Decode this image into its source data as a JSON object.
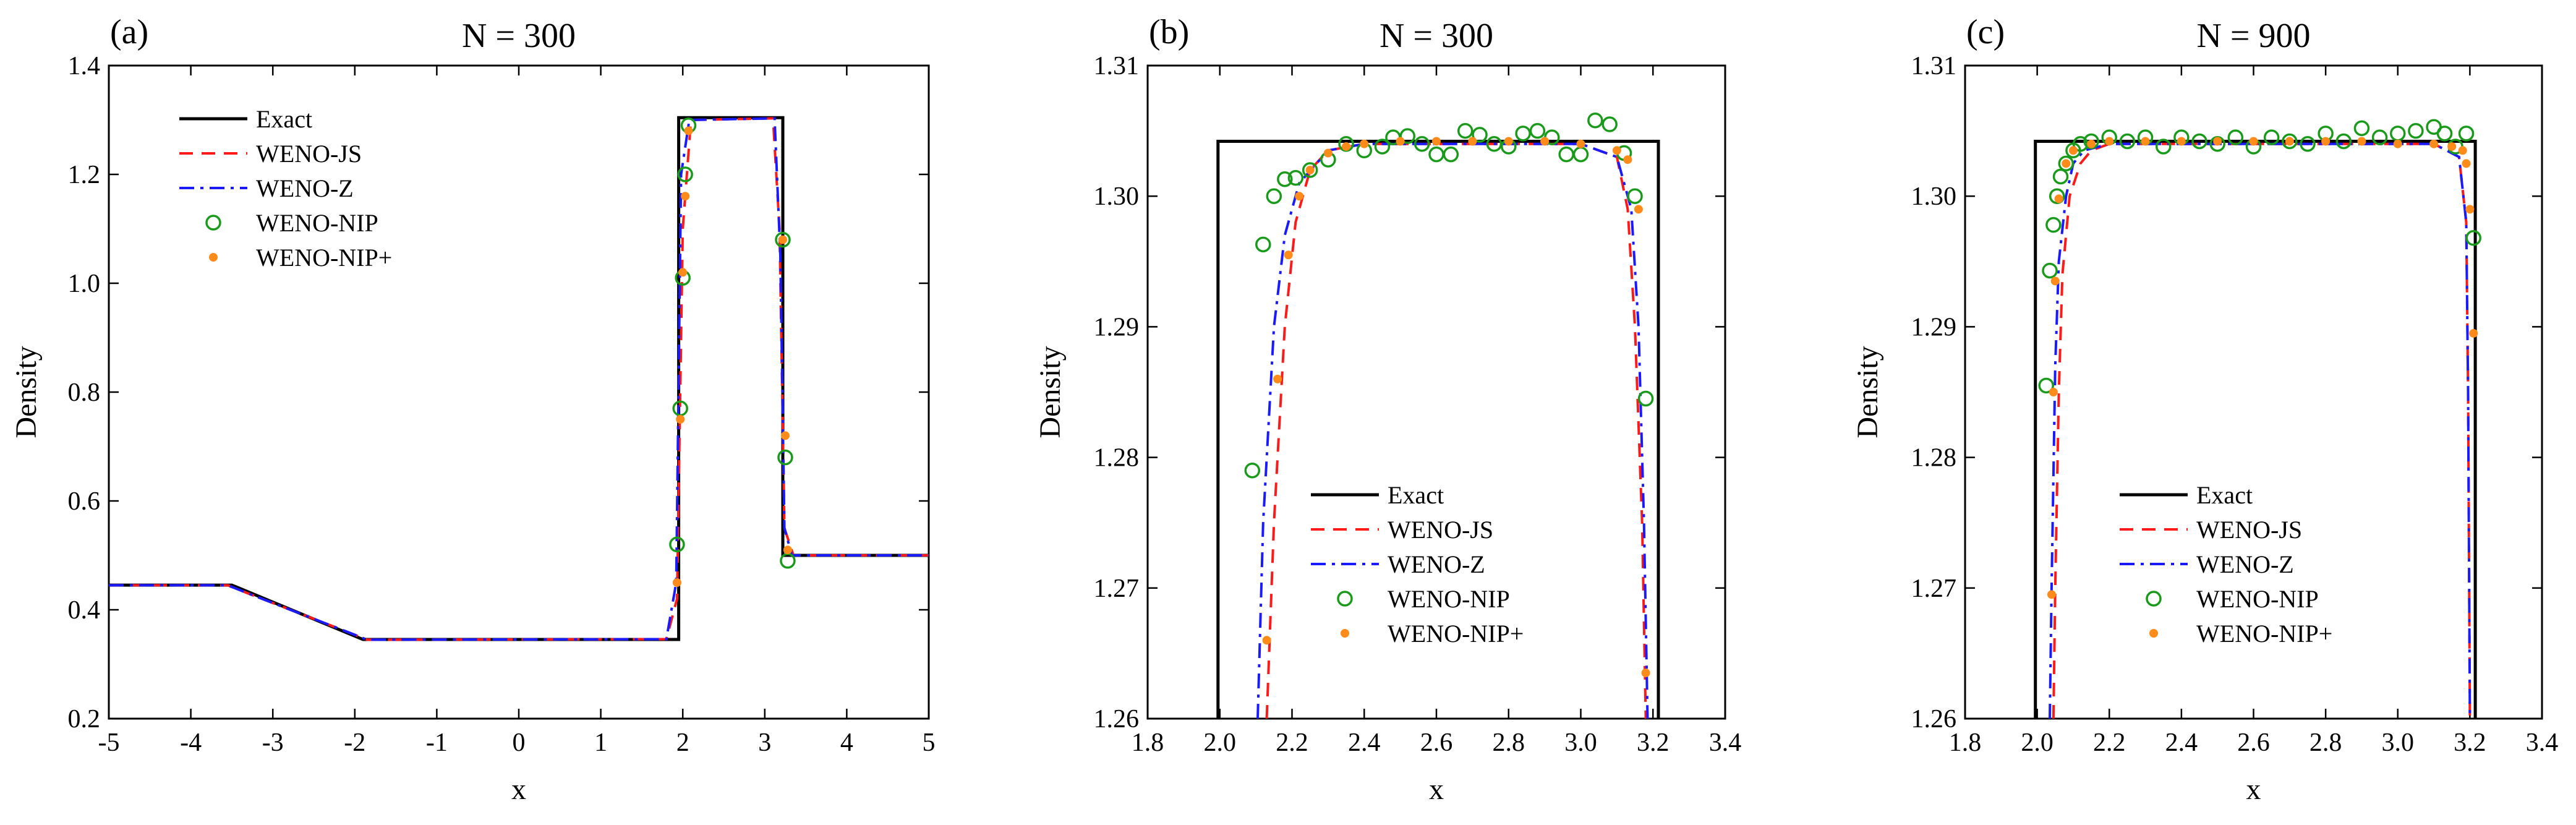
{
  "figure": {
    "description_free": true,
    "series_styles": {
      "Exact": {
        "color": "#000000",
        "style": "solid"
      },
      "WENO-JS": {
        "color": "#ff1a1a",
        "style": "dashed"
      },
      "WENO-Z": {
        "color": "#1a1aff",
        "style": "dashdot"
      },
      "WENO-NIP": {
        "color": "#1a9a1a",
        "style": "open-circle"
      },
      "WENO-NIP+": {
        "color": "#ff8c1a",
        "style": "filled-dot"
      }
    }
  },
  "chart_data": [
    {
      "type": "line",
      "panel_tag": "(a)",
      "title": "N = 300",
      "xlabel": "x",
      "ylabel": "Density",
      "xlim": [
        -5,
        5
      ],
      "ylim": [
        0.2,
        1.4
      ],
      "xticks": [
        -5,
        -4,
        -3,
        -2,
        -1,
        0,
        1,
        2,
        3,
        4,
        5
      ],
      "yticks": [
        0.2,
        0.4,
        0.6,
        0.8,
        1.0,
        1.2,
        1.4
      ],
      "xtick_labels": [
        "-5",
        "-4",
        "-3",
        "-2",
        "-1",
        "0",
        "1",
        "2",
        "3",
        "4",
        "5"
      ],
      "ytick_labels": [
        "0.2",
        "0.4",
        "0.6",
        "0.8",
        "1.0",
        "1.2",
        "1.4"
      ],
      "legend": {
        "position": "top-left",
        "entries": [
          "Exact",
          "WENO-JS",
          "WENO-Z",
          "WENO-NIP",
          "WENO-NIP+"
        ]
      },
      "series": [
        {
          "name": "Exact",
          "x": [
            -5,
            -3.5,
            -1.9,
            1.95,
            1.95,
            3.22,
            3.22,
            5
          ],
          "y": [
            0.4453,
            0.4453,
            0.3454,
            0.3454,
            1.3042,
            1.3042,
            0.5,
            0.5
          ]
        },
        {
          "name": "WENO-JS",
          "x": [
            -5,
            -3.55,
            -3.3,
            -2.1,
            -1.85,
            1.8,
            1.93,
            2.0,
            2.1,
            3.1,
            3.18,
            3.24,
            3.35,
            5
          ],
          "y": [
            0.445,
            0.445,
            0.43,
            0.36,
            0.345,
            0.346,
            0.42,
            1.1,
            1.3,
            1.303,
            1.1,
            0.55,
            0.5,
            0.5
          ]
        },
        {
          "name": "WENO-Z",
          "x": [
            -5,
            -3.55,
            -3.3,
            -2.1,
            -1.85,
            1.8,
            1.92,
            1.98,
            2.08,
            3.12,
            3.19,
            3.24,
            3.33,
            5
          ],
          "y": [
            0.445,
            0.445,
            0.43,
            0.36,
            0.345,
            0.346,
            0.45,
            1.2,
            1.3,
            1.303,
            1.05,
            0.55,
            0.5,
            0.5
          ]
        },
        {
          "name": "WENO-NIP",
          "x": [
            1.93,
            1.97,
            2.0,
            2.03,
            2.07,
            3.22,
            3.25,
            3.28
          ],
          "y": [
            0.52,
            0.77,
            1.01,
            1.2,
            1.29,
            1.08,
            0.68,
            0.49
          ]
        },
        {
          "name": "WENO-NIP+",
          "x": [
            1.93,
            1.97,
            2.0,
            2.03,
            2.07,
            3.22,
            3.25,
            3.28
          ],
          "y": [
            0.45,
            0.75,
            1.02,
            1.16,
            1.28,
            1.08,
            0.72,
            0.51
          ]
        }
      ]
    },
    {
      "type": "line",
      "panel_tag": "(b)",
      "title": "N = 300",
      "xlabel": "x",
      "ylabel": "Density",
      "xlim": [
        1.8,
        3.4
      ],
      "ylim": [
        1.26,
        1.31
      ],
      "xticks": [
        1.8,
        2.0,
        2.2,
        2.4,
        2.6,
        2.8,
        3.0,
        3.2,
        3.4
      ],
      "yticks": [
        1.26,
        1.27,
        1.28,
        1.29,
        1.3,
        1.31
      ],
      "xtick_labels": [
        "1.8",
        "2.0",
        "2.2",
        "2.4",
        "2.6",
        "2.8",
        "3.0",
        "3.2",
        "3.4"
      ],
      "ytick_labels": [
        "1.26",
        "1.27",
        "1.28",
        "1.29",
        "1.30",
        "1.31"
      ],
      "legend": {
        "position": "lower-center",
        "entries": [
          "Exact",
          "WENO-JS",
          "WENO-Z",
          "WENO-NIP",
          "WENO-NIP+"
        ]
      },
      "series": [
        {
          "name": "Exact",
          "x": [
            1.995,
            1.995,
            3.215,
            3.215
          ],
          "y": [
            1.26,
            1.3042,
            1.3042,
            1.26
          ]
        },
        {
          "name": "WENO-JS",
          "x": [
            2.13,
            2.15,
            2.18,
            2.21,
            2.25,
            2.3,
            2.4,
            2.6,
            2.8,
            3.0,
            3.1,
            3.13,
            3.15,
            3.17,
            3.18
          ],
          "y": [
            1.26,
            1.275,
            1.29,
            1.298,
            1.302,
            1.3035,
            1.304,
            1.304,
            1.304,
            1.304,
            1.303,
            1.299,
            1.29,
            1.275,
            1.26
          ]
        },
        {
          "name": "WENO-Z",
          "x": [
            2.105,
            2.12,
            2.15,
            2.18,
            2.22,
            2.3,
            2.4,
            2.6,
            2.8,
            3.0,
            3.1,
            3.14,
            3.16,
            3.175,
            3.185
          ],
          "y": [
            1.26,
            1.275,
            1.29,
            1.297,
            1.301,
            1.3035,
            1.304,
            1.304,
            1.304,
            1.304,
            1.303,
            1.299,
            1.29,
            1.275,
            1.26
          ]
        },
        {
          "name": "WENO-NIP",
          "x": [
            2.09,
            2.12,
            2.15,
            2.18,
            2.21,
            2.25,
            2.3,
            2.35,
            2.4,
            2.45,
            2.48,
            2.52,
            2.56,
            2.6,
            2.64,
            2.68,
            2.72,
            2.76,
            2.8,
            2.84,
            2.88,
            2.92,
            2.96,
            3.0,
            3.04,
            3.08,
            3.12,
            3.15,
            3.18
          ],
          "y": [
            1.279,
            1.2963,
            1.3,
            1.3013,
            1.3014,
            1.302,
            1.3028,
            1.304,
            1.3035,
            1.3038,
            1.3045,
            1.3046,
            1.304,
            1.3032,
            1.3032,
            1.305,
            1.3047,
            1.304,
            1.3038,
            1.3048,
            1.305,
            1.3045,
            1.3032,
            1.3032,
            1.3058,
            1.3055,
            1.3033,
            1.3,
            1.2845
          ]
        },
        {
          "name": "WENO-NIP+",
          "x": [
            2.13,
            2.16,
            2.19,
            2.22,
            2.25,
            2.3,
            2.35,
            2.4,
            2.5,
            2.6,
            2.7,
            2.8,
            2.9,
            3.0,
            3.1,
            3.13,
            3.16,
            3.18
          ],
          "y": [
            1.266,
            1.286,
            1.2955,
            1.3,
            1.302,
            1.3033,
            1.3038,
            1.304,
            1.3042,
            1.3042,
            1.3042,
            1.3042,
            1.3042,
            1.304,
            1.3035,
            1.3028,
            1.299,
            1.2635
          ]
        }
      ]
    },
    {
      "type": "line",
      "panel_tag": "(c)",
      "title": "N = 900",
      "xlabel": "x",
      "ylabel": "Density",
      "xlim": [
        1.8,
        3.4
      ],
      "ylim": [
        1.26,
        1.31
      ],
      "xticks": [
        1.8,
        2.0,
        2.2,
        2.4,
        2.6,
        2.8,
        3.0,
        3.2,
        3.4
      ],
      "yticks": [
        1.26,
        1.27,
        1.28,
        1.29,
        1.3,
        1.31
      ],
      "xtick_labels": [
        "1.8",
        "2.0",
        "2.2",
        "2.4",
        "2.6",
        "2.8",
        "3.0",
        "3.2",
        "3.4"
      ],
      "ytick_labels": [
        "1.26",
        "1.27",
        "1.28",
        "1.29",
        "1.30",
        "1.31"
      ],
      "legend": {
        "position": "lower-center",
        "entries": [
          "Exact",
          "WENO-JS",
          "WENO-Z",
          "WENO-NIP",
          "WENO-NIP+"
        ]
      },
      "series": [
        {
          "name": "Exact",
          "x": [
            1.995,
            1.995,
            3.215,
            3.215
          ],
          "y": [
            1.26,
            1.3042,
            1.3042,
            1.26
          ]
        },
        {
          "name": "WENO-JS",
          "x": [
            2.045,
            2.05,
            2.06,
            2.07,
            2.09,
            2.12,
            2.15,
            2.2,
            2.4,
            2.8,
            3.1,
            3.17,
            3.19,
            3.195,
            3.2
          ],
          "y": [
            1.26,
            1.27,
            1.285,
            1.294,
            1.3,
            1.3025,
            1.3035,
            1.304,
            1.304,
            1.304,
            1.304,
            1.303,
            1.298,
            1.285,
            1.26
          ]
        },
        {
          "name": "WENO-Z",
          "x": [
            2.035,
            2.04,
            2.05,
            2.06,
            2.08,
            2.1,
            2.13,
            2.2,
            2.4,
            2.8,
            3.1,
            3.17,
            3.19,
            3.195,
            3.2
          ],
          "y": [
            1.26,
            1.27,
            1.287,
            1.295,
            1.3,
            1.3025,
            1.3035,
            1.304,
            1.304,
            1.304,
            1.304,
            1.303,
            1.298,
            1.285,
            1.26
          ]
        },
        {
          "name": "WENO-NIP",
          "x": [
            2.025,
            2.035,
            2.045,
            2.055,
            2.065,
            2.08,
            2.1,
            2.12,
            2.15,
            2.2,
            2.25,
            2.3,
            2.35,
            2.4,
            2.45,
            2.5,
            2.55,
            2.6,
            2.65,
            2.7,
            2.75,
            2.8,
            2.85,
            2.9,
            2.95,
            3.0,
            3.05,
            3.1,
            3.13,
            3.16,
            3.19,
            3.21
          ],
          "y": [
            1.2855,
            1.2943,
            1.2978,
            1.3,
            1.3015,
            1.3025,
            1.3035,
            1.304,
            1.3042,
            1.3045,
            1.3042,
            1.3045,
            1.3038,
            1.3045,
            1.3042,
            1.304,
            1.3045,
            1.3038,
            1.3045,
            1.3042,
            1.304,
            1.3048,
            1.3042,
            1.3052,
            1.3045,
            1.3048,
            1.305,
            1.3053,
            1.3048,
            1.3038,
            1.3048,
            1.2968
          ]
        },
        {
          "name": "WENO-NIP+",
          "x": [
            2.04,
            2.045,
            2.05,
            2.06,
            2.08,
            2.1,
            2.15,
            2.2,
            2.3,
            2.4,
            2.5,
            2.6,
            2.7,
            2.8,
            2.9,
            3.0,
            3.1,
            3.15,
            3.18,
            3.19,
            3.2,
            3.21
          ],
          "y": [
            1.2695,
            1.285,
            1.2935,
            1.2998,
            1.3025,
            1.3035,
            1.304,
            1.3042,
            1.3042,
            1.3042,
            1.3042,
            1.3042,
            1.3042,
            1.3042,
            1.3042,
            1.304,
            1.304,
            1.3038,
            1.3035,
            1.3025,
            1.299,
            1.2895
          ]
        }
      ]
    }
  ]
}
